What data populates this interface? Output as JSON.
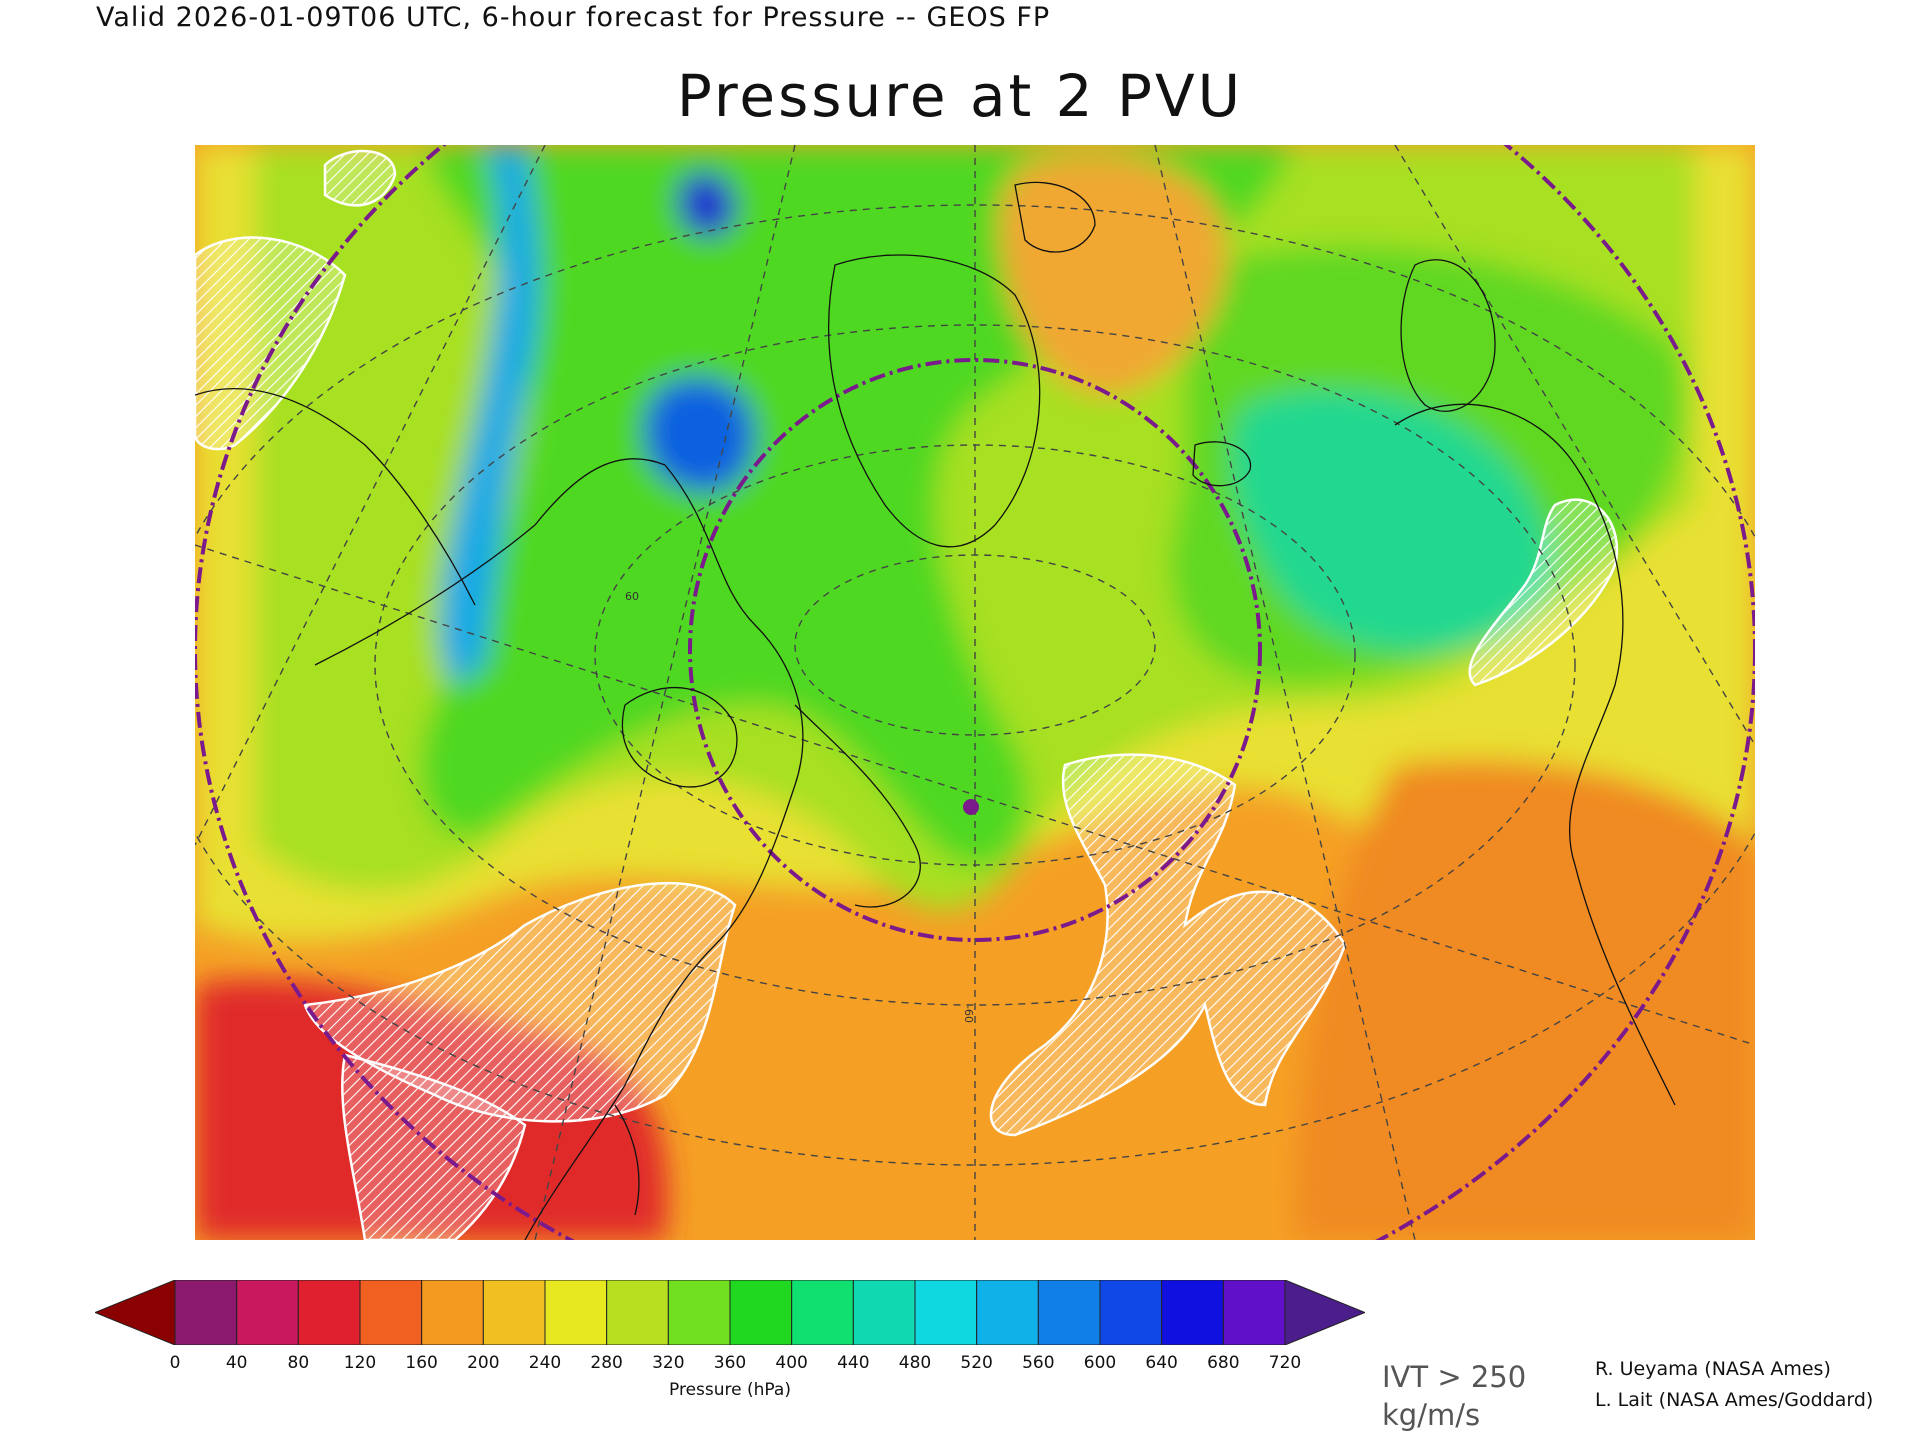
{
  "header": {
    "valid_line": "Valid 2026-01-09T06 UTC, 6-hour forecast for Pressure -- GEOS FP",
    "title": "Pressure at 2 PVU"
  },
  "colorbar": {
    "label": "Pressure (hPa)",
    "ticks": [
      "0",
      "40",
      "80",
      "120",
      "160",
      "200",
      "240",
      "280",
      "320",
      "360",
      "400",
      "440",
      "480",
      "520",
      "560",
      "600",
      "640",
      "680",
      "720"
    ],
    "under_color": "#8b0000",
    "over_color": "#4b1e8c",
    "colors": [
      "#8b1a6e",
      "#c8185e",
      "#e0202e",
      "#f06020",
      "#f59a20",
      "#f0c020",
      "#e8e820",
      "#b8e020",
      "#70e020",
      "#20d820",
      "#10e070",
      "#10d8b0",
      "#10d8e0",
      "#10b0e8",
      "#1080e8",
      "#1048e8",
      "#1010e0",
      "#6010c8"
    ]
  },
  "map": {
    "background_color": "#f59a20",
    "contour_label_1": "60",
    "contour_label_2": "-60"
  },
  "notes": {
    "ivt_line1": "IVT > 250",
    "ivt_line2": "kg/m/s"
  },
  "credits": {
    "line1": "R. Ueyama (NASA Ames)",
    "line2": "L. Lait (NASA Ames/Goddard)"
  }
}
